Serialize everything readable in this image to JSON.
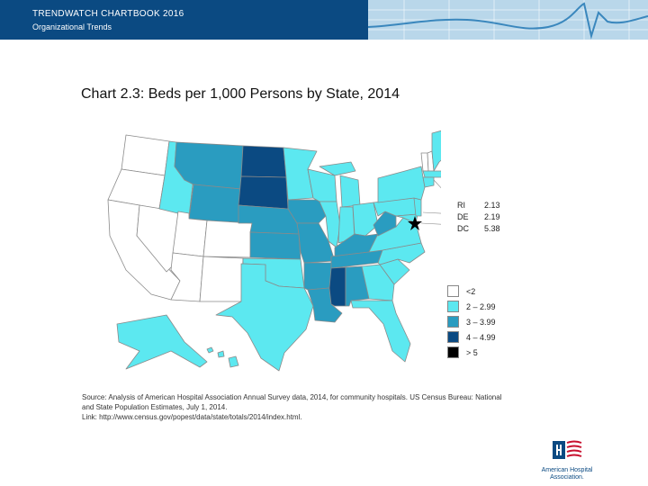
{
  "header": {
    "line1": "TRENDWATCH CHARTBOOK 2016",
    "line2": "Organizational Trends"
  },
  "title": "Chart 2.3: Beds per 1,000 Persons by State, 2014",
  "colors": {
    "lt2": "#ffffff",
    "c2to299": "#5ce8f0",
    "c3to399": "#2a9cc0",
    "c4to499": "#0b4a82",
    "ge5": "#000000",
    "border": "#8a8a8a"
  },
  "small_states": [
    {
      "abbr": "RI",
      "value": "2.13"
    },
    {
      "abbr": "DE",
      "value": "2.19"
    },
    {
      "abbr": "DC",
      "value": "5.38"
    }
  ],
  "legend": [
    {
      "label": "<2",
      "color": "#ffffff"
    },
    {
      "label": "2 – 2.99",
      "color": "#5ce8f0"
    },
    {
      "label": "3 – 3.99",
      "color": "#2a9cc0"
    },
    {
      "label": "4 – 4.99",
      "color": "#0b4a82"
    },
    {
      "label": "> 5",
      "color": "#000000"
    }
  ],
  "source": {
    "line1": "Source: Analysis of American Hospital Association Annual Survey data, 2014, for community hospitals. US Census Bureau: National",
    "line2": "and State Population Estimates, July 1, 2014.",
    "line3": "Link: http://www.census.gov/popest/data/state/totals/2014/index.html."
  },
  "logo": {
    "line1": "American Hospital",
    "line2": "Association."
  }
}
